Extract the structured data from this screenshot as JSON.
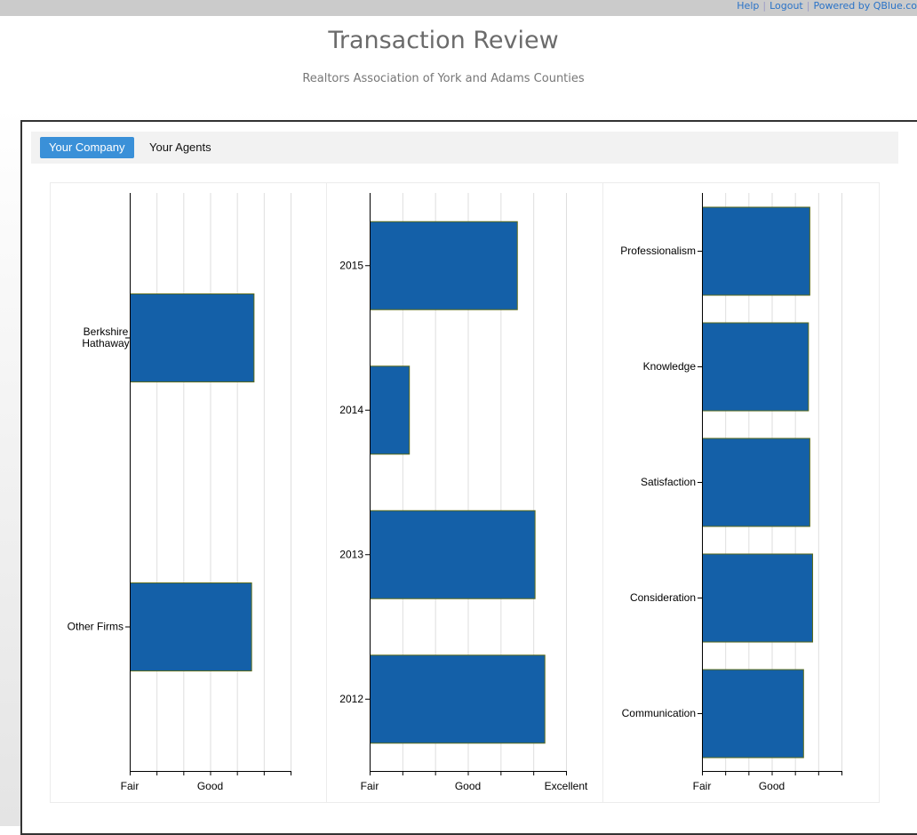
{
  "top_links": {
    "help": "Help",
    "logout": "Logout",
    "powered": "Powered by QBlue.co"
  },
  "header": {
    "title": "Transaction Review",
    "subtitle": "Realtors Association of York and Adams Counties"
  },
  "tabs": [
    {
      "label": "Your Company",
      "active": true
    },
    {
      "label": "Your Agents",
      "active": false
    }
  ],
  "colors": {
    "bar": "#1460a8",
    "bar_outline": "#5a6a1a",
    "active_tab": "#3a90d8",
    "link": "#2a73c8"
  },
  "chart_data": [
    {
      "type": "bar",
      "orientation": "horizontal",
      "categories": [
        "Berkshire Hathaway",
        "Other Firms"
      ],
      "category_lines": [
        [
          "Berkshire",
          "Hathaway"
        ],
        [
          "Other Firms"
        ]
      ],
      "values": [
        2.54,
        2.51
      ],
      "xlim": [
        1,
        3
      ],
      "tick_count": 7,
      "tick_labels": [
        {
          "value": 1,
          "label": "Fair"
        },
        {
          "value": 2,
          "label": "Good"
        }
      ],
      "grid": true
    },
    {
      "type": "bar",
      "orientation": "horizontal",
      "categories": [
        "2015",
        "2014",
        "2013",
        "2012"
      ],
      "category_lines": [
        [
          "2015"
        ],
        [
          "2014"
        ],
        [
          "2013"
        ],
        [
          "2012"
        ]
      ],
      "values": [
        2.5,
        1.4,
        2.68,
        2.78
      ],
      "xlim": [
        1,
        3
      ],
      "tick_count": 7,
      "tick_labels": [
        {
          "value": 1,
          "label": "Fair"
        },
        {
          "value": 2,
          "label": "Good"
        },
        {
          "value": 3,
          "label": "Excellent"
        }
      ],
      "grid": true
    },
    {
      "type": "bar",
      "orientation": "horizontal",
      "categories": [
        "Professionalism",
        "Knowledge",
        "Satisfaction",
        "Consideration",
        "Communication"
      ],
      "category_lines": [
        [
          "Professionalism"
        ],
        [
          "Knowledge"
        ],
        [
          "Satisfaction"
        ],
        [
          "Consideration"
        ],
        [
          "Communication"
        ]
      ],
      "values": [
        2.54,
        2.52,
        2.54,
        2.58,
        2.45
      ],
      "xlim": [
        1,
        3
      ],
      "tick_count": 7,
      "tick_labels": [
        {
          "value": 1,
          "label": "Fair"
        },
        {
          "value": 2,
          "label": "Good"
        }
      ],
      "grid": true
    }
  ]
}
